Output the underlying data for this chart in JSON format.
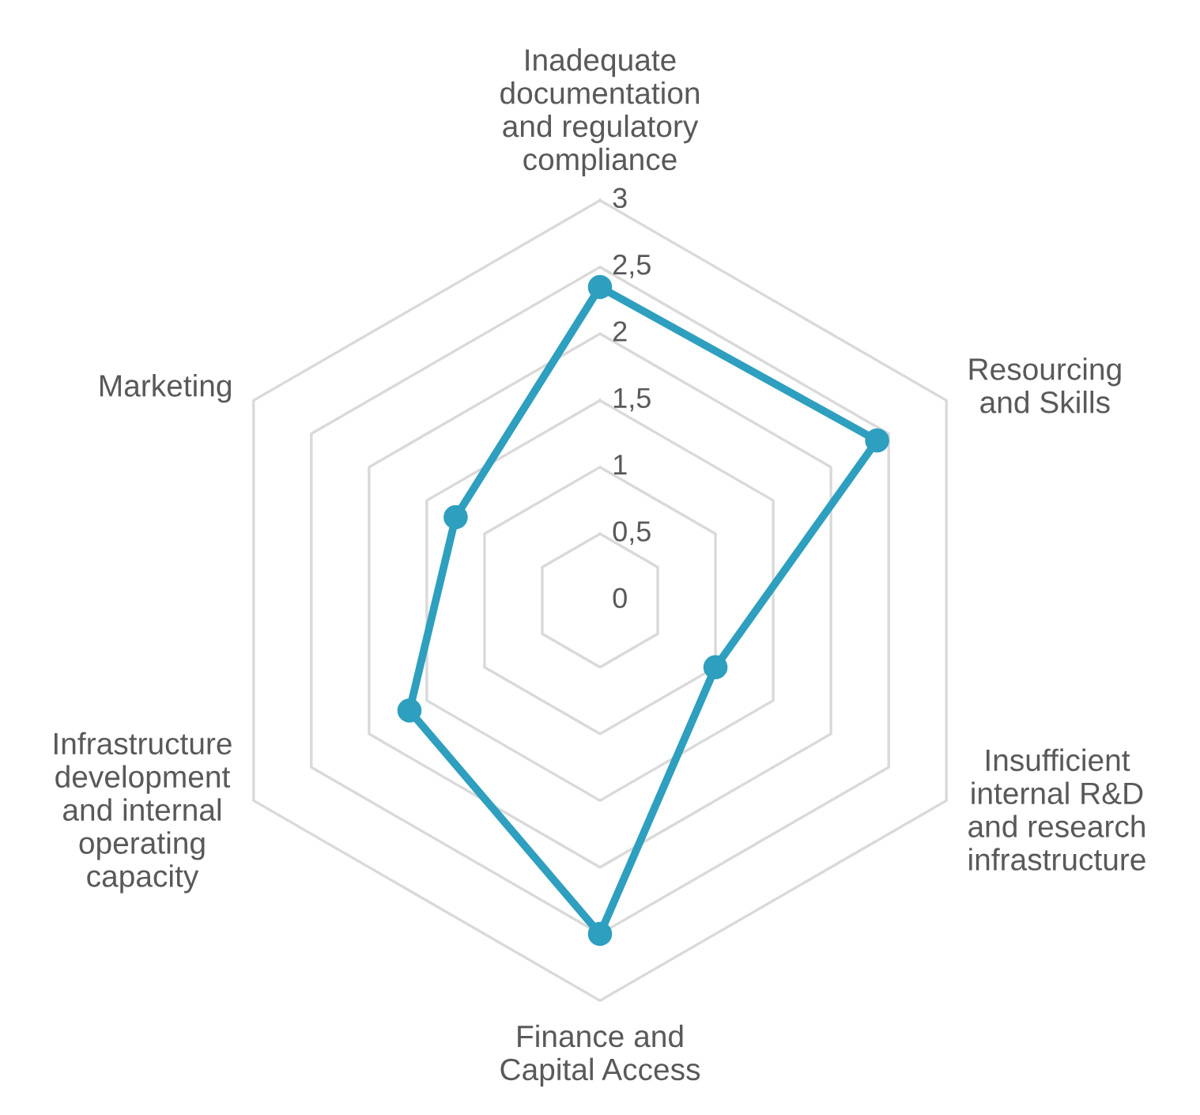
{
  "chart_data": {
    "type": "radar",
    "categories": [
      "Inadequate\ndocumentation\nand regulatory\ncompliance",
      "Resourcing\nand Skills",
      "Insufficient\ninternal R&D\nand research\ninfrastructure",
      "Finance and\nCapital Access",
      "Infrastructure\ndevelopment\nand internal\noperating\ncapacity",
      "Marketing"
    ],
    "series": [
      {
        "color": "#2e9fbf",
        "values": [
          2.35,
          2.4,
          1.0,
          2.5,
          1.65,
          1.25
        ]
      }
    ],
    "ylim": [
      0,
      3
    ],
    "yticks": [
      0,
      {
        "value": 0.5,
        "label": "0,5"
      },
      1,
      {
        "value": 1.5,
        "label": "1,5"
      },
      2,
      {
        "value": 2.5,
        "label": "2,5"
      },
      3
    ],
    "grid": true,
    "marker": "circle"
  }
}
